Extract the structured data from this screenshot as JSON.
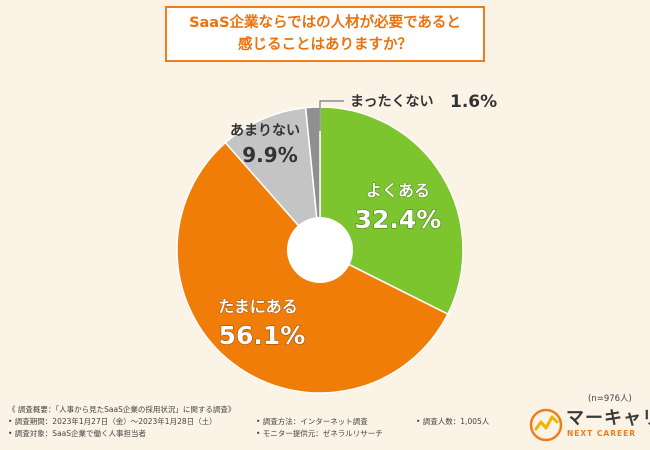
{
  "title": {
    "line1": "SaaS企業ならではの人材が必要であると",
    "line2": "感じることはありますか？"
  },
  "chart_data": {
    "type": "pie",
    "title": "SaaS企業ならではの人材が必要であると感じることはありますか？",
    "categories": [
      "よくある",
      "たまにある",
      "あまりない",
      "まったくない"
    ],
    "values": [
      32.4,
      56.1,
      9.9,
      1.6
    ],
    "value_labels": [
      "32.4%",
      "56.1%",
      "9.9%",
      "1.6%"
    ],
    "colors": [
      "#7dc52e",
      "#f07d07",
      "#c4c4c4",
      "#8f8f8f"
    ],
    "donut": true,
    "sample_size": "(n=976人)"
  },
  "footer": {
    "overview": "《 調査概要：「人事から見たSaaS企業の採用状況」に関する調査》",
    "period": "• 調査期間：2023年1月27日（金）〜2023年1月28日（土）",
    "method": "• 調査方法：インターネット調査",
    "people": "• 調査人数：1,005人",
    "target": "• 調査対象：SaaS企業で働く人事担当者",
    "provider": "• モニター提供元：ゼネラルリサーチ"
  },
  "logo": {
    "name": "マーキャリ",
    "sub": "NEXT CAREER",
    "accent_color": "#f07d1b"
  }
}
